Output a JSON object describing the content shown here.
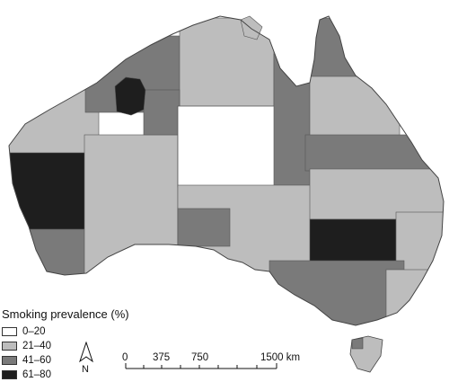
{
  "legend": {
    "title": "Smoking prevalence (%)",
    "classes": [
      {
        "label": "0–20",
        "color": "#ffffff"
      },
      {
        "label": "21–40",
        "color": "#bdbdbd"
      },
      {
        "label": "41–60",
        "color": "#7a7a7a"
      },
      {
        "label": "61–80",
        "color": "#1e1e1e"
      }
    ]
  },
  "scale": {
    "labels": [
      "0",
      "375",
      "750",
      "1500 km"
    ]
  },
  "north_arrow": {
    "letter": "N",
    "icon": "north-arrow-icon"
  },
  "colors": {
    "border": "#555555",
    "c0": "#ffffff",
    "c1": "#bdbdbd",
    "c2": "#7a7a7a",
    "c3": "#1e1e1e"
  }
}
